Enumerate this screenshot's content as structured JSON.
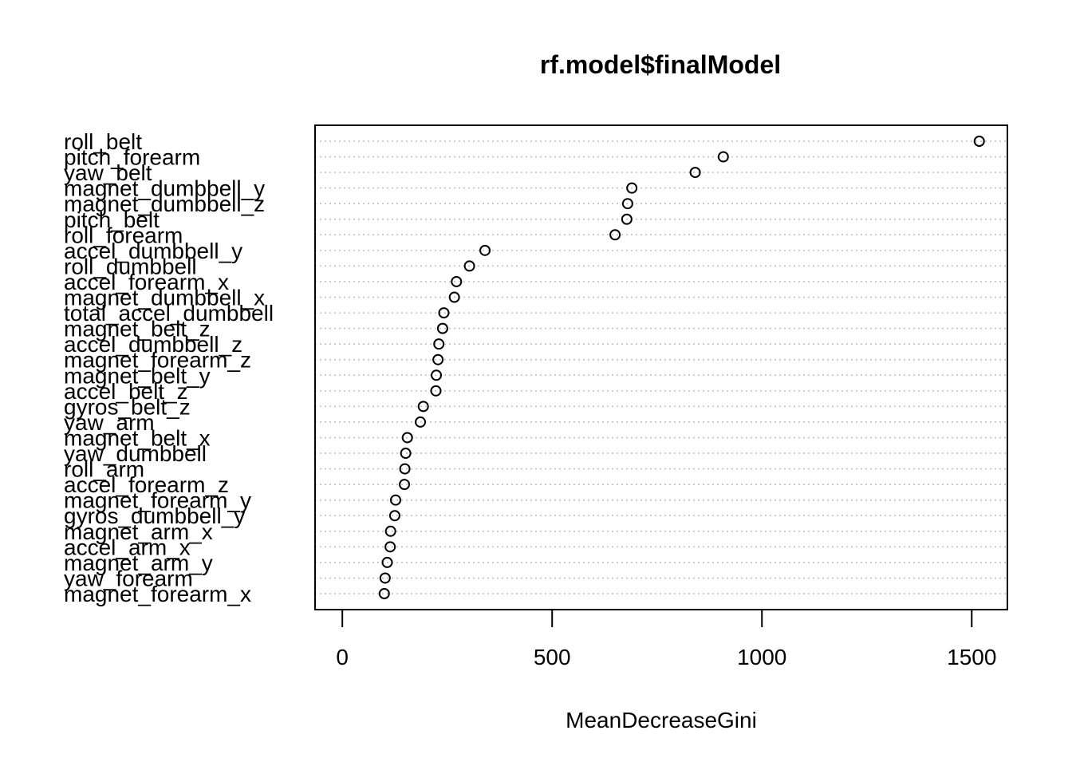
{
  "chart_data": {
    "type": "dotchart",
    "title": "rf.model$finalModel",
    "xlabel": "MeanDecreaseGini",
    "ylabel": "",
    "xlim": [
      -65,
      1585
    ],
    "xticks": [
      0,
      500,
      1000,
      1500
    ],
    "grid": "dotted horizontal lines per variable",
    "variables": [
      {
        "name": "roll_belt",
        "value": 1518
      },
      {
        "name": "pitch_forearm",
        "value": 908
      },
      {
        "name": "yaw_belt",
        "value": 841
      },
      {
        "name": "magnet_dumbbell_y",
        "value": 690
      },
      {
        "name": "magnet_dumbbell_z",
        "value": 680
      },
      {
        "name": "pitch_belt",
        "value": 678
      },
      {
        "name": "roll_forearm",
        "value": 650
      },
      {
        "name": "accel_dumbbell_y",
        "value": 340
      },
      {
        "name": "roll_dumbbell",
        "value": 303
      },
      {
        "name": "accel_forearm_x",
        "value": 272
      },
      {
        "name": "magnet_dumbbell_x",
        "value": 267
      },
      {
        "name": "total_accel_dumbbell",
        "value": 242
      },
      {
        "name": "magnet_belt_z",
        "value": 239
      },
      {
        "name": "accel_dumbbell_z",
        "value": 230
      },
      {
        "name": "magnet_forearm_z",
        "value": 228
      },
      {
        "name": "magnet_belt_y",
        "value": 224
      },
      {
        "name": "accel_belt_z",
        "value": 223
      },
      {
        "name": "gyros_belt_z",
        "value": 193
      },
      {
        "name": "yaw_arm",
        "value": 186
      },
      {
        "name": "magnet_belt_x",
        "value": 155
      },
      {
        "name": "yaw_dumbbell",
        "value": 151
      },
      {
        "name": "roll_arm",
        "value": 149
      },
      {
        "name": "accel_forearm_z",
        "value": 148
      },
      {
        "name": "magnet_forearm_y",
        "value": 127
      },
      {
        "name": "gyros_dumbbell_y",
        "value": 125
      },
      {
        "name": "magnet_arm_x",
        "value": 115
      },
      {
        "name": "accel_arm_x",
        "value": 114
      },
      {
        "name": "magnet_arm_y",
        "value": 107
      },
      {
        "name": "yaw_forearm",
        "value": 102
      },
      {
        "name": "magnet_forearm_x",
        "value": 100
      }
    ]
  }
}
